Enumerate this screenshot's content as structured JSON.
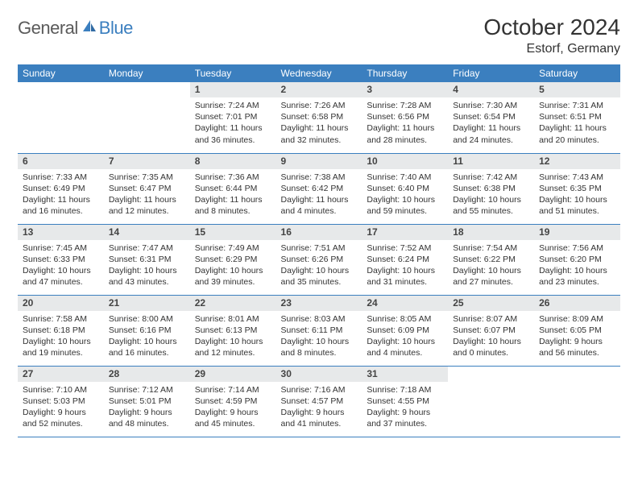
{
  "logo": {
    "part1": "General",
    "part2": "Blue"
  },
  "header": {
    "month_title": "October 2024",
    "location": "Estorf, Germany"
  },
  "colors": {
    "brand_blue": "#3b7fbf",
    "daynum_bg": "#e7e9ea",
    "text": "#333333",
    "logo_gray": "#5a5a5a",
    "white": "#ffffff"
  },
  "weekdays": [
    "Sunday",
    "Monday",
    "Tuesday",
    "Wednesday",
    "Thursday",
    "Friday",
    "Saturday"
  ],
  "weeks": [
    [
      null,
      null,
      {
        "num": "1",
        "sunrise": "Sunrise: 7:24 AM",
        "sunset": "Sunset: 7:01 PM",
        "daylight": "Daylight: 11 hours and 36 minutes."
      },
      {
        "num": "2",
        "sunrise": "Sunrise: 7:26 AM",
        "sunset": "Sunset: 6:58 PM",
        "daylight": "Daylight: 11 hours and 32 minutes."
      },
      {
        "num": "3",
        "sunrise": "Sunrise: 7:28 AM",
        "sunset": "Sunset: 6:56 PM",
        "daylight": "Daylight: 11 hours and 28 minutes."
      },
      {
        "num": "4",
        "sunrise": "Sunrise: 7:30 AM",
        "sunset": "Sunset: 6:54 PM",
        "daylight": "Daylight: 11 hours and 24 minutes."
      },
      {
        "num": "5",
        "sunrise": "Sunrise: 7:31 AM",
        "sunset": "Sunset: 6:51 PM",
        "daylight": "Daylight: 11 hours and 20 minutes."
      }
    ],
    [
      {
        "num": "6",
        "sunrise": "Sunrise: 7:33 AM",
        "sunset": "Sunset: 6:49 PM",
        "daylight": "Daylight: 11 hours and 16 minutes."
      },
      {
        "num": "7",
        "sunrise": "Sunrise: 7:35 AM",
        "sunset": "Sunset: 6:47 PM",
        "daylight": "Daylight: 11 hours and 12 minutes."
      },
      {
        "num": "8",
        "sunrise": "Sunrise: 7:36 AM",
        "sunset": "Sunset: 6:44 PM",
        "daylight": "Daylight: 11 hours and 8 minutes."
      },
      {
        "num": "9",
        "sunrise": "Sunrise: 7:38 AM",
        "sunset": "Sunset: 6:42 PM",
        "daylight": "Daylight: 11 hours and 4 minutes."
      },
      {
        "num": "10",
        "sunrise": "Sunrise: 7:40 AM",
        "sunset": "Sunset: 6:40 PM",
        "daylight": "Daylight: 10 hours and 59 minutes."
      },
      {
        "num": "11",
        "sunrise": "Sunrise: 7:42 AM",
        "sunset": "Sunset: 6:38 PM",
        "daylight": "Daylight: 10 hours and 55 minutes."
      },
      {
        "num": "12",
        "sunrise": "Sunrise: 7:43 AM",
        "sunset": "Sunset: 6:35 PM",
        "daylight": "Daylight: 10 hours and 51 minutes."
      }
    ],
    [
      {
        "num": "13",
        "sunrise": "Sunrise: 7:45 AM",
        "sunset": "Sunset: 6:33 PM",
        "daylight": "Daylight: 10 hours and 47 minutes."
      },
      {
        "num": "14",
        "sunrise": "Sunrise: 7:47 AM",
        "sunset": "Sunset: 6:31 PM",
        "daylight": "Daylight: 10 hours and 43 minutes."
      },
      {
        "num": "15",
        "sunrise": "Sunrise: 7:49 AM",
        "sunset": "Sunset: 6:29 PM",
        "daylight": "Daylight: 10 hours and 39 minutes."
      },
      {
        "num": "16",
        "sunrise": "Sunrise: 7:51 AM",
        "sunset": "Sunset: 6:26 PM",
        "daylight": "Daylight: 10 hours and 35 minutes."
      },
      {
        "num": "17",
        "sunrise": "Sunrise: 7:52 AM",
        "sunset": "Sunset: 6:24 PM",
        "daylight": "Daylight: 10 hours and 31 minutes."
      },
      {
        "num": "18",
        "sunrise": "Sunrise: 7:54 AM",
        "sunset": "Sunset: 6:22 PM",
        "daylight": "Daylight: 10 hours and 27 minutes."
      },
      {
        "num": "19",
        "sunrise": "Sunrise: 7:56 AM",
        "sunset": "Sunset: 6:20 PM",
        "daylight": "Daylight: 10 hours and 23 minutes."
      }
    ],
    [
      {
        "num": "20",
        "sunrise": "Sunrise: 7:58 AM",
        "sunset": "Sunset: 6:18 PM",
        "daylight": "Daylight: 10 hours and 19 minutes."
      },
      {
        "num": "21",
        "sunrise": "Sunrise: 8:00 AM",
        "sunset": "Sunset: 6:16 PM",
        "daylight": "Daylight: 10 hours and 16 minutes."
      },
      {
        "num": "22",
        "sunrise": "Sunrise: 8:01 AM",
        "sunset": "Sunset: 6:13 PM",
        "daylight": "Daylight: 10 hours and 12 minutes."
      },
      {
        "num": "23",
        "sunrise": "Sunrise: 8:03 AM",
        "sunset": "Sunset: 6:11 PM",
        "daylight": "Daylight: 10 hours and 8 minutes."
      },
      {
        "num": "24",
        "sunrise": "Sunrise: 8:05 AM",
        "sunset": "Sunset: 6:09 PM",
        "daylight": "Daylight: 10 hours and 4 minutes."
      },
      {
        "num": "25",
        "sunrise": "Sunrise: 8:07 AM",
        "sunset": "Sunset: 6:07 PM",
        "daylight": "Daylight: 10 hours and 0 minutes."
      },
      {
        "num": "26",
        "sunrise": "Sunrise: 8:09 AM",
        "sunset": "Sunset: 6:05 PM",
        "daylight": "Daylight: 9 hours and 56 minutes."
      }
    ],
    [
      {
        "num": "27",
        "sunrise": "Sunrise: 7:10 AM",
        "sunset": "Sunset: 5:03 PM",
        "daylight": "Daylight: 9 hours and 52 minutes."
      },
      {
        "num": "28",
        "sunrise": "Sunrise: 7:12 AM",
        "sunset": "Sunset: 5:01 PM",
        "daylight": "Daylight: 9 hours and 48 minutes."
      },
      {
        "num": "29",
        "sunrise": "Sunrise: 7:14 AM",
        "sunset": "Sunset: 4:59 PM",
        "daylight": "Daylight: 9 hours and 45 minutes."
      },
      {
        "num": "30",
        "sunrise": "Sunrise: 7:16 AM",
        "sunset": "Sunset: 4:57 PM",
        "daylight": "Daylight: 9 hours and 41 minutes."
      },
      {
        "num": "31",
        "sunrise": "Sunrise: 7:18 AM",
        "sunset": "Sunset: 4:55 PM",
        "daylight": "Daylight: 9 hours and 37 minutes."
      },
      null,
      null
    ]
  ]
}
